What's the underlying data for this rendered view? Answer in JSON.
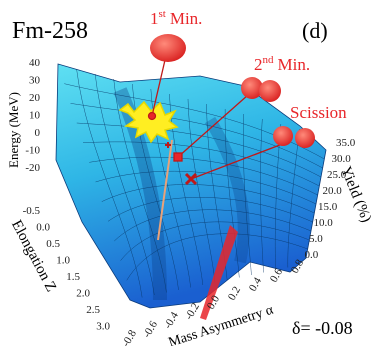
{
  "title": "Fm-258",
  "panel": "(d)",
  "annotations": {
    "first_min": {
      "number": "1",
      "suffix": "st",
      "text": "Min."
    },
    "second_min": {
      "number": "2",
      "suffix": "nd",
      "text": "Min."
    },
    "scission": "Scission"
  },
  "axes": {
    "energy": {
      "label": "Energy (MeV)",
      "ticks": [
        "40",
        "30",
        "20",
        "10",
        "0",
        "-10",
        "-20"
      ]
    },
    "elongation": {
      "label": "Elongation Z",
      "ticks": [
        "-0.5",
        "0.0",
        "0.5",
        "1.0",
        "1.5",
        "2.0",
        "2.5",
        "3.0"
      ]
    },
    "mass_asymmetry": {
      "label": "Mass Asymmetry α",
      "ticks": [
        "-0.8",
        "-0.6",
        "-0.4",
        "-0.2",
        "0.0",
        "0.2",
        "0.4",
        "0.6",
        "0.8"
      ]
    },
    "yield": {
      "label": "Yield (%)",
      "ticks": [
        "35.0",
        "30.0",
        "25.0",
        "20.0",
        "15.0",
        "10.0",
        "5.0",
        "0.0"
      ]
    }
  },
  "deformation": "δ= -0.08"
}
